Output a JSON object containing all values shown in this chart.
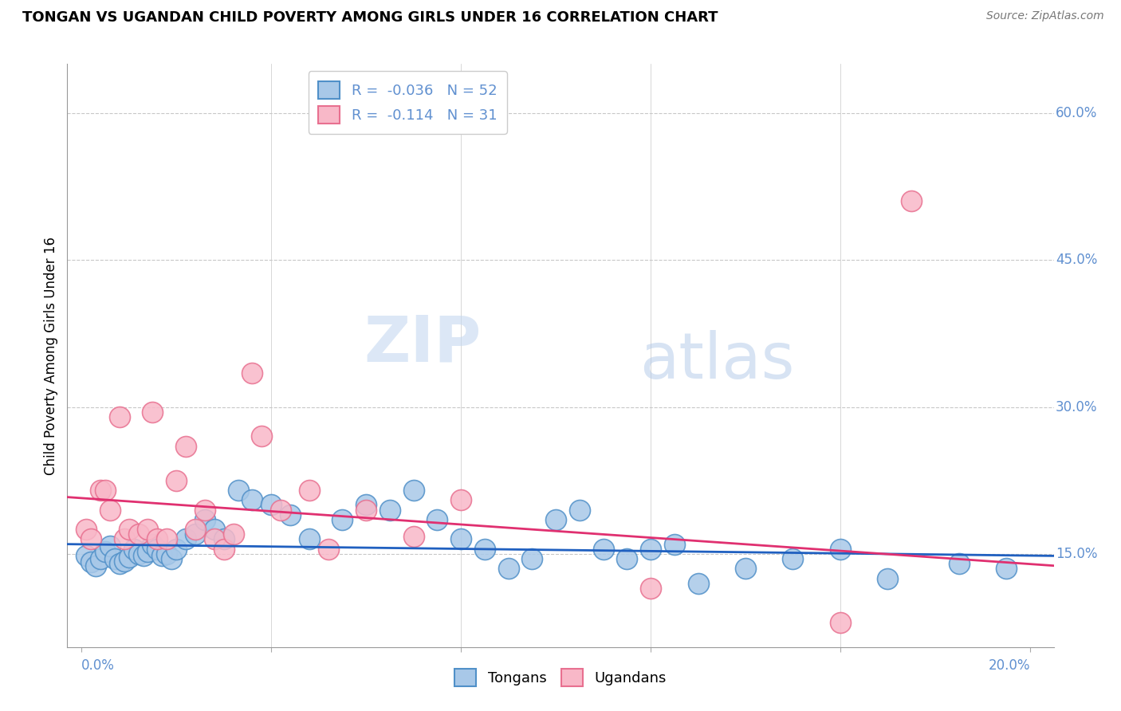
{
  "title": "TONGAN VS UGANDAN CHILD POVERTY AMONG GIRLS UNDER 16 CORRELATION CHART",
  "source": "Source: ZipAtlas.com",
  "ylabel": "Child Poverty Among Girls Under 16",
  "y_ticks": [
    0.15,
    0.3,
    0.45,
    0.6
  ],
  "y_tick_labels": [
    "15.0%",
    "30.0%",
    "45.0%",
    "60.0%"
  ],
  "x_ticks": [
    0.0,
    0.04,
    0.08,
    0.12,
    0.16,
    0.2
  ],
  "watermark_zip": "ZIP",
  "watermark_atlas": "atlas",
  "legend_blue_r": "-0.036",
  "legend_blue_n": "52",
  "legend_pink_r": "-0.114",
  "legend_pink_n": "31",
  "blue_color": "#a8c8e8",
  "blue_edge": "#5090c8",
  "pink_color": "#f8b8c8",
  "pink_edge": "#e87090",
  "trend_blue": "#2060c0",
  "trend_pink": "#e03070",
  "axis_color": "#6090d0",
  "grid_color": "#c8c8c8",
  "blue_points_x": [
    0.001,
    0.002,
    0.003,
    0.004,
    0.005,
    0.006,
    0.007,
    0.008,
    0.009,
    0.01,
    0.011,
    0.012,
    0.013,
    0.014,
    0.015,
    0.016,
    0.017,
    0.018,
    0.019,
    0.02,
    0.022,
    0.024,
    0.026,
    0.028,
    0.03,
    0.033,
    0.036,
    0.04,
    0.044,
    0.048,
    0.055,
    0.06,
    0.065,
    0.07,
    0.075,
    0.08,
    0.085,
    0.09,
    0.095,
    0.1,
    0.105,
    0.11,
    0.115,
    0.12,
    0.125,
    0.13,
    0.14,
    0.15,
    0.16,
    0.17,
    0.185,
    0.195
  ],
  "blue_points_y": [
    0.148,
    0.142,
    0.138,
    0.145,
    0.152,
    0.158,
    0.145,
    0.14,
    0.143,
    0.147,
    0.155,
    0.15,
    0.148,
    0.152,
    0.16,
    0.155,
    0.148,
    0.15,
    0.145,
    0.155,
    0.165,
    0.17,
    0.185,
    0.175,
    0.165,
    0.215,
    0.205,
    0.2,
    0.19,
    0.165,
    0.185,
    0.2,
    0.195,
    0.215,
    0.185,
    0.165,
    0.155,
    0.135,
    0.145,
    0.185,
    0.195,
    0.155,
    0.145,
    0.155,
    0.16,
    0.12,
    0.135,
    0.145,
    0.155,
    0.125,
    0.14,
    0.135
  ],
  "pink_points_x": [
    0.001,
    0.002,
    0.004,
    0.005,
    0.006,
    0.008,
    0.009,
    0.01,
    0.012,
    0.014,
    0.015,
    0.016,
    0.018,
    0.02,
    0.022,
    0.024,
    0.026,
    0.028,
    0.03,
    0.032,
    0.036,
    0.038,
    0.042,
    0.048,
    0.052,
    0.06,
    0.07,
    0.08,
    0.12,
    0.16,
    0.175
  ],
  "pink_points_y": [
    0.175,
    0.165,
    0.215,
    0.215,
    0.195,
    0.29,
    0.165,
    0.175,
    0.17,
    0.175,
    0.295,
    0.165,
    0.165,
    0.225,
    0.26,
    0.175,
    0.195,
    0.165,
    0.155,
    0.17,
    0.335,
    0.27,
    0.195,
    0.215,
    0.155,
    0.195,
    0.168,
    0.205,
    0.115,
    0.08,
    0.51
  ],
  "ylim": [
    0.055,
    0.65
  ],
  "xlim": [
    -0.003,
    0.205
  ],
  "blue_trend_x": [
    -0.003,
    0.205
  ],
  "blue_trend_y": [
    0.16,
    0.148
  ],
  "pink_trend_x": [
    -0.003,
    0.205
  ],
  "pink_trend_y": [
    0.208,
    0.138
  ]
}
